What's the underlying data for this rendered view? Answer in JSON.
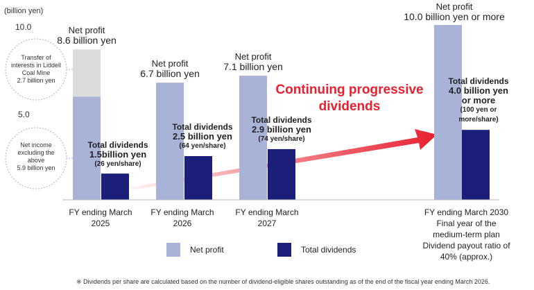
{
  "chart_data": {
    "type": "bar",
    "ylabel": "(billion yen)",
    "yticks": [
      "10.0",
      "5.0"
    ],
    "ylim": [
      0,
      10
    ],
    "categories": [
      [
        "FY ending March",
        "2025"
      ],
      [
        "FY ending March",
        "2026"
      ],
      [
        "FY ending March",
        "2027"
      ],
      [
        "FY ending March 2030",
        "Final year of the",
        "medium-term plan",
        "Dividend payout ratio of",
        "40% (approx.)"
      ]
    ],
    "series": [
      {
        "name": "Net profit",
        "values": [
          8.6,
          6.7,
          7.1,
          10.0
        ],
        "color": "#a9b3d8",
        "stack_top": {
          "index": 0,
          "value": 2.7,
          "color": "#dcdcdc"
        }
      },
      {
        "name": "Total dividends",
        "values": [
          1.5,
          2.5,
          2.9,
          4.0
        ],
        "color": "#1c1f7a"
      }
    ],
    "net_profit_labels": [
      {
        "title": "Net profit",
        "value": "8.6 billion yen"
      },
      {
        "title": "Net profit",
        "value": "6.7 billion yen"
      },
      {
        "title": "Net profit",
        "value": "7.1 billion yen"
      },
      {
        "title": "Net profit",
        "value": "10.0 billion yen or more"
      }
    ],
    "dividend_labels": [
      {
        "title": "Total dividends",
        "value": "1.5billion yen",
        "per_share": "(26 yen/share)"
      },
      {
        "title": "Total dividends",
        "value": "2.5 billion yen",
        "per_share": "(64 yen/share)"
      },
      {
        "title": "Total dividends",
        "value": "2.9 billion yen",
        "per_share": "(74 yen/share)"
      },
      {
        "title": "Total dividends",
        "value": "4.0 billion yen",
        "value2": "or more",
        "per_share": "(100 yen or",
        "per_share2": "more/share)"
      }
    ],
    "annotations": {
      "bubble_top": [
        "Transfer of",
        "interests in Liddell",
        "Coal Mine",
        "2.7 billion yen"
      ],
      "bubble_bottom": [
        "Net income",
        "excluding the",
        "above",
        "5.9 billion yen"
      ],
      "headline": [
        "Continuing progressive",
        "dividends"
      ],
      "arrow_color": "#e8202f"
    },
    "legend": [
      {
        "label": "Net profit",
        "color": "#a9b3d8"
      },
      {
        "label": "Total dividends",
        "color": "#1c1f7a"
      }
    ],
    "legend_position": "bottom-center",
    "footnote": "※ Dividends per share are calculated based on the number of dividend-eligible shares outstanding as of the end of the fiscal year ending March 2026."
  }
}
